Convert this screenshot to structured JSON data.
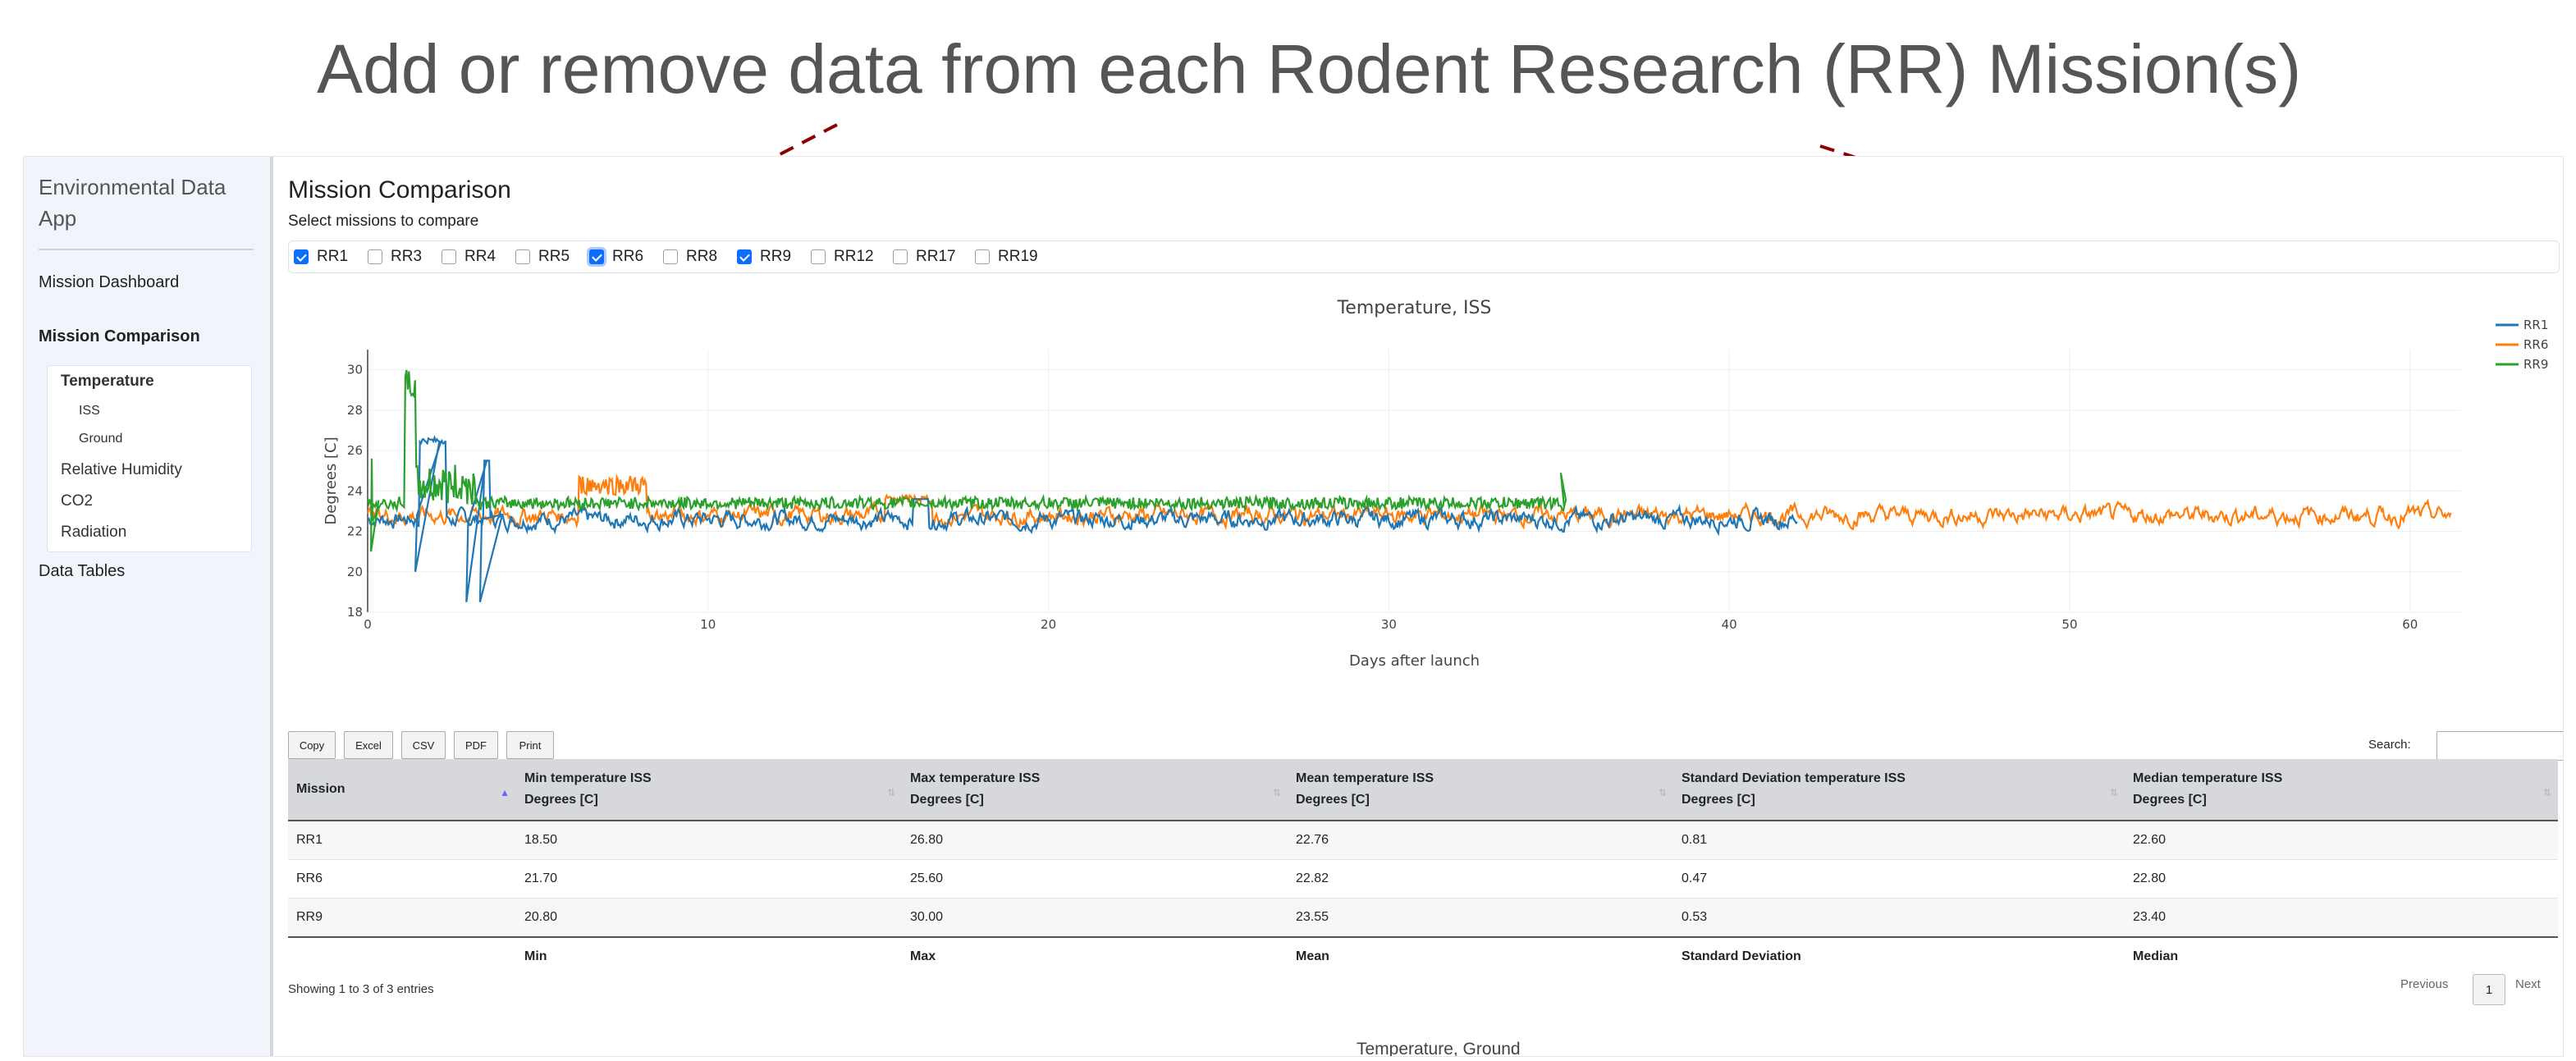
{
  "annotation": {
    "title": "Add or remove data from each Rodent Research (RR) Mission(s)",
    "arrow_color": "#8b0000"
  },
  "sidebar": {
    "brand": "Environmental Data App",
    "nav": {
      "dashboard": "Mission Dashboard",
      "comparison": "Mission Comparison",
      "data_tables": "Data Tables"
    },
    "subnav": {
      "temperature": "Temperature",
      "iss": "ISS",
      "ground": "Ground",
      "humidity": "Relative Humidity",
      "co2": "CO2",
      "radiation": "Radiation"
    }
  },
  "main": {
    "title": "Mission Comparison",
    "select_label": "Select missions to compare",
    "missions": [
      {
        "label": "RR1",
        "checked": true
      },
      {
        "label": "RR3",
        "checked": false
      },
      {
        "label": "RR4",
        "checked": false
      },
      {
        "label": "RR5",
        "checked": false
      },
      {
        "label": "RR6",
        "checked": true
      },
      {
        "label": "RR8",
        "checked": false
      },
      {
        "label": "RR9",
        "checked": true
      },
      {
        "label": "RR12",
        "checked": false
      },
      {
        "label": "RR17",
        "checked": false
      },
      {
        "label": "RR19",
        "checked": false
      }
    ],
    "next_chart_title": "Temperature, Ground"
  },
  "chart_data": {
    "type": "line",
    "title": "Temperature, ISS",
    "xlabel": "Days after launch",
    "ylabel": "Degrees [C]",
    "xlim": [
      0,
      61.5
    ],
    "ylim": [
      18,
      31
    ],
    "xticks": [
      0,
      10,
      20,
      30,
      40,
      50,
      60
    ],
    "yticks": [
      18,
      20,
      22,
      24,
      26,
      28,
      30
    ],
    "grid": true,
    "legend_position": "top-right",
    "series": [
      {
        "name": "RR1",
        "color": "#1f77b4",
        "x_range": [
          0,
          42
        ],
        "min": 18.5,
        "max": 26.8,
        "mean": 22.76,
        "std": 0.81,
        "median": 22.6
      },
      {
        "name": "RR6",
        "color": "#ff7f0e",
        "x_range": [
          0,
          61.2
        ],
        "min": 21.7,
        "max": 25.6,
        "mean": 22.82,
        "std": 0.47,
        "median": 22.8
      },
      {
        "name": "RR9",
        "color": "#2ca02c",
        "x_range": [
          0,
          35.2
        ],
        "min": 20.8,
        "max": 30.0,
        "mean": 23.55,
        "std": 0.53,
        "median": 23.4
      }
    ]
  },
  "toolbar": {
    "copy": "Copy",
    "excel": "Excel",
    "csv": "CSV",
    "pdf": "PDF",
    "print": "Print",
    "search_label": "Search:",
    "search_value": ""
  },
  "table": {
    "headers": [
      {
        "line1": "Mission",
        "line2": ""
      },
      {
        "line1": "Min temperature ISS",
        "line2": "Degrees [C]"
      },
      {
        "line1": "Max temperature ISS",
        "line2": "Degrees [C]"
      },
      {
        "line1": "Mean temperature ISS",
        "line2": "Degrees [C]"
      },
      {
        "line1": "Standard Deviation temperature ISS",
        "line2": "Degrees [C]"
      },
      {
        "line1": "Median temperature ISS",
        "line2": "Degrees [C]"
      }
    ],
    "rows": [
      [
        "RR1",
        "18.50",
        "26.80",
        "22.76",
        "0.81",
        "22.60"
      ],
      [
        "RR6",
        "21.70",
        "25.60",
        "22.82",
        "0.47",
        "22.80"
      ],
      [
        "RR9",
        "20.80",
        "30.00",
        "23.55",
        "0.53",
        "23.40"
      ]
    ],
    "footer": [
      "",
      "Min",
      "Max",
      "Mean",
      "Standard Deviation",
      "Median"
    ],
    "info": "Showing 1 to 3 of 3 entries",
    "pager": {
      "previous": "Previous",
      "page": "1",
      "next": "Next"
    }
  }
}
